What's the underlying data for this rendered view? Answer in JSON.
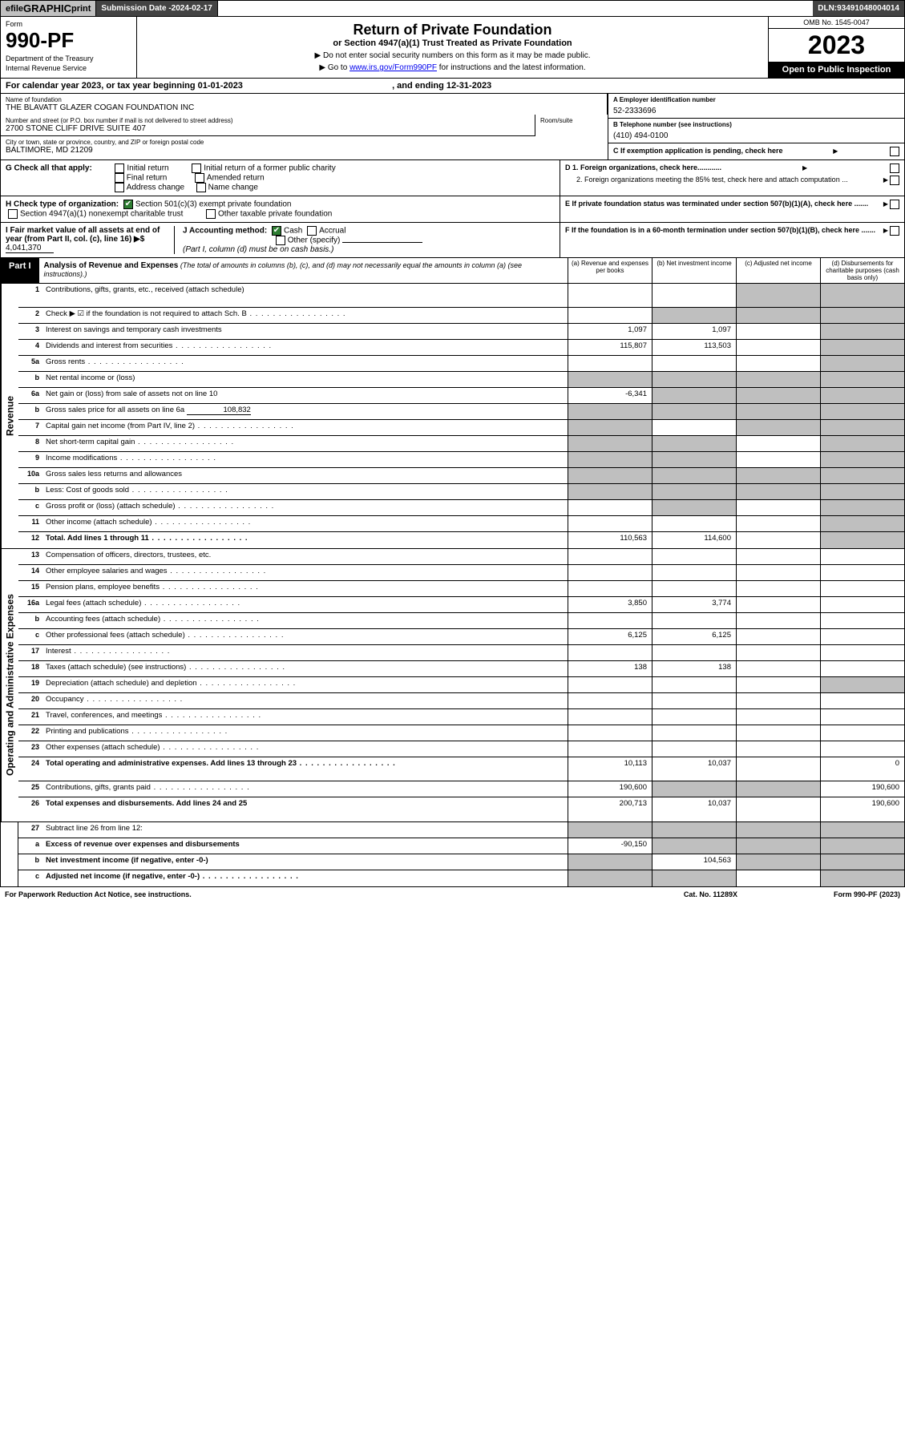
{
  "topbar": {
    "efile_prefix": "efile ",
    "efile_g": "GRAPHIC",
    "efile_suffix": " print",
    "subdate_label": "Submission Date - ",
    "subdate_val": "2024-02-17",
    "dln_label": "DLN: ",
    "dln_val": "93491048004014"
  },
  "header": {
    "form_word": "Form",
    "form_no": "990-PF",
    "dept1": "Department of the Treasury",
    "dept2": "Internal Revenue Service",
    "title": "Return of Private Foundation",
    "subtitle": "or Section 4947(a)(1) Trust Treated as Private Foundation",
    "inst1": "▶ Do not enter social security numbers on this form as it may be made public.",
    "inst2_pre": "▶ Go to ",
    "inst2_link": "www.irs.gov/Form990PF",
    "inst2_post": " for instructions and the latest information.",
    "omb": "OMB No. 1545-0047",
    "year": "2023",
    "inspect": "Open to Public Inspection"
  },
  "calyear": {
    "pre": "For calendar year 2023, or tax year beginning ",
    "begin": "01-01-2023",
    "mid": " , and ending ",
    "end": "12-31-2023"
  },
  "info": {
    "name_lbl": "Name of foundation",
    "name_val": "THE BLAVATT GLAZER COGAN FOUNDATION INC",
    "addr_lbl": "Number and street (or P.O. box number if mail is not delivered to street address)",
    "addr_val": "2700 STONE CLIFF DRIVE SUITE 407",
    "room_lbl": "Room/suite",
    "city_lbl": "City or town, state or province, country, and ZIP or foreign postal code",
    "city_val": "BALTIMORE, MD  21209",
    "ein_lbl": "A Employer identification number",
    "ein_val": "52-2333696",
    "tel_lbl": "B Telephone number (see instructions)",
    "tel_val": "(410) 494-0100",
    "c_lbl": "C If exemption application is pending, check here",
    "d1": "D 1. Foreign organizations, check here............",
    "d2": "2. Foreign organizations meeting the 85% test, check here and attach computation ...",
    "e_lbl": "E  If private foundation status was terminated under section 507(b)(1)(A), check here .......",
    "f_lbl": "F  If the foundation is in a 60-month termination under section 507(b)(1)(B), check here .......",
    "g_lbl": "G Check all that apply:",
    "g_opts": [
      "Initial return",
      "Final return",
      "Address change",
      "Initial return of a former public charity",
      "Amended return",
      "Name change"
    ],
    "h_lbl": "H Check type of organization:",
    "h1": "Section 501(c)(3) exempt private foundation",
    "h2": "Section 4947(a)(1) nonexempt charitable trust",
    "h3": "Other taxable private foundation",
    "i_lbl": "I Fair market value of all assets at end of year (from Part II, col. (c), line 16) ▶$ ",
    "i_val": "4,041,370",
    "j_lbl": "J Accounting method:",
    "j1": "Cash",
    "j2": "Accrual",
    "j3": "Other (specify)",
    "j_note": "(Part I, column (d) must be on cash basis.)"
  },
  "part1": {
    "label": "Part I",
    "title": "Analysis of Revenue and Expenses",
    "desc": " (The total of amounts in columns (b), (c), and (d) may not necessarily equal the amounts in column (a) (see instructions).)",
    "col_a": "(a)  Revenue and expenses per books",
    "col_b": "(b)  Net investment income",
    "col_c": "(c)  Adjusted net income",
    "col_d": "(d)  Disbursements for charitable purposes (cash basis only)"
  },
  "side_rev": "Revenue",
  "side_exp": "Operating and Administrative Expenses",
  "rows_rev": [
    {
      "n": "1",
      "d": "Contributions, gifts, grants, etc., received (attach schedule)",
      "a": "",
      "b": "",
      "c": "g",
      "dcol": "g",
      "tall": true
    },
    {
      "n": "2",
      "d": "Check ▶ ☑ if the foundation is not required to attach Sch. B",
      "a": "",
      "b": "g",
      "c": "g",
      "dcol": "g",
      "dot": true,
      "bold": false
    },
    {
      "n": "3",
      "d": "Interest on savings and temporary cash investments",
      "a": "1,097",
      "b": "1,097",
      "c": "",
      "dcol": "g"
    },
    {
      "n": "4",
      "d": "Dividends and interest from securities",
      "a": "115,807",
      "b": "113,503",
      "c": "",
      "dcol": "g",
      "dot": true
    },
    {
      "n": "5a",
      "d": "Gross rents",
      "a": "",
      "b": "",
      "c": "",
      "dcol": "g",
      "dot": true
    },
    {
      "n": "b",
      "d": "Net rental income or (loss)",
      "a": "g",
      "b": "g",
      "c": "g",
      "dcol": "g",
      "inset": true
    },
    {
      "n": "6a",
      "d": "Net gain or (loss) from sale of assets not on line 10",
      "a": "-6,341",
      "b": "g",
      "c": "g",
      "dcol": "g"
    },
    {
      "n": "b",
      "d": "Gross sales price for all assets on line 6a",
      "a": "g",
      "b": "g",
      "c": "g",
      "dcol": "g",
      "inline_val": "108,832"
    },
    {
      "n": "7",
      "d": "Capital gain net income (from Part IV, line 2)",
      "a": "g",
      "b": "",
      "c": "g",
      "dcol": "g",
      "dot": true
    },
    {
      "n": "8",
      "d": "Net short-term capital gain",
      "a": "g",
      "b": "g",
      "c": "",
      "dcol": "g",
      "dot": true
    },
    {
      "n": "9",
      "d": "Income modifications",
      "a": "g",
      "b": "g",
      "c": "",
      "dcol": "g",
      "dot": true
    },
    {
      "n": "10a",
      "d": "Gross sales less returns and allowances",
      "a": "g",
      "b": "g",
      "c": "g",
      "dcol": "g",
      "inset": true
    },
    {
      "n": "b",
      "d": "Less: Cost of goods sold",
      "a": "g",
      "b": "g",
      "c": "g",
      "dcol": "g",
      "dot": true,
      "inset": true
    },
    {
      "n": "c",
      "d": "Gross profit or (loss) (attach schedule)",
      "a": "",
      "b": "g",
      "c": "",
      "dcol": "g",
      "dot": true
    },
    {
      "n": "11",
      "d": "Other income (attach schedule)",
      "a": "",
      "b": "",
      "c": "",
      "dcol": "g",
      "dot": true
    },
    {
      "n": "12",
      "d": "Total. Add lines 1 through 11",
      "a": "110,563",
      "b": "114,600",
      "c": "",
      "dcol": "g",
      "dot": true,
      "bold": true
    }
  ],
  "rows_exp": [
    {
      "n": "13",
      "d": "Compensation of officers, directors, trustees, etc.",
      "a": "",
      "b": "",
      "c": "",
      "dcol": ""
    },
    {
      "n": "14",
      "d": "Other employee salaries and wages",
      "a": "",
      "b": "",
      "c": "",
      "dcol": "",
      "dot": true
    },
    {
      "n": "15",
      "d": "Pension plans, employee benefits",
      "a": "",
      "b": "",
      "c": "",
      "dcol": "",
      "dot": true
    },
    {
      "n": "16a",
      "d": "Legal fees (attach schedule)",
      "a": "3,850",
      "b": "3,774",
      "c": "",
      "dcol": "",
      "dot": true
    },
    {
      "n": "b",
      "d": "Accounting fees (attach schedule)",
      "a": "",
      "b": "",
      "c": "",
      "dcol": "",
      "dot": true
    },
    {
      "n": "c",
      "d": "Other professional fees (attach schedule)",
      "a": "6,125",
      "b": "6,125",
      "c": "",
      "dcol": "",
      "dot": true
    },
    {
      "n": "17",
      "d": "Interest",
      "a": "",
      "b": "",
      "c": "",
      "dcol": "",
      "dot": true
    },
    {
      "n": "18",
      "d": "Taxes (attach schedule) (see instructions)",
      "a": "138",
      "b": "138",
      "c": "",
      "dcol": "",
      "dot": true
    },
    {
      "n": "19",
      "d": "Depreciation (attach schedule) and depletion",
      "a": "",
      "b": "",
      "c": "",
      "dcol": "g",
      "dot": true
    },
    {
      "n": "20",
      "d": "Occupancy",
      "a": "",
      "b": "",
      "c": "",
      "dcol": "",
      "dot": true
    },
    {
      "n": "21",
      "d": "Travel, conferences, and meetings",
      "a": "",
      "b": "",
      "c": "",
      "dcol": "",
      "dot": true
    },
    {
      "n": "22",
      "d": "Printing and publications",
      "a": "",
      "b": "",
      "c": "",
      "dcol": "",
      "dot": true
    },
    {
      "n": "23",
      "d": "Other expenses (attach schedule)",
      "a": "",
      "b": "",
      "c": "",
      "dcol": "",
      "dot": true
    },
    {
      "n": "24",
      "d": "Total operating and administrative expenses. Add lines 13 through 23",
      "a": "10,113",
      "b": "10,037",
      "c": "",
      "dcol": "0",
      "dot": true,
      "bold": true,
      "tall": true
    },
    {
      "n": "25",
      "d": "Contributions, gifts, grants paid",
      "a": "190,600",
      "b": "g",
      "c": "g",
      "dcol": "190,600",
      "dot": true
    },
    {
      "n": "26",
      "d": "Total expenses and disbursements. Add lines 24 and 25",
      "a": "200,713",
      "b": "10,037",
      "c": "",
      "dcol": "190,600",
      "bold": true,
      "tall": true
    }
  ],
  "rows_sub": [
    {
      "n": "27",
      "d": "Subtract line 26 from line 12:",
      "a": "g",
      "b": "g",
      "c": "g",
      "dcol": "g"
    },
    {
      "n": "a",
      "d": "Excess of revenue over expenses and disbursements",
      "a": "-90,150",
      "b": "g",
      "c": "g",
      "dcol": "g",
      "bold": true
    },
    {
      "n": "b",
      "d": "Net investment income (if negative, enter -0-)",
      "a": "g",
      "b": "104,563",
      "c": "g",
      "dcol": "g",
      "bold": true
    },
    {
      "n": "c",
      "d": "Adjusted net income (if negative, enter -0-)",
      "a": "g",
      "b": "g",
      "c": "",
      "dcol": "g",
      "bold": true,
      "dot": true
    }
  ],
  "footer": {
    "left": "For Paperwork Reduction Act Notice, see instructions.",
    "mid": "Cat. No. 11289X",
    "right": "Form 990-PF (2023)"
  },
  "colors": {
    "grey": "#bfbfbf",
    "darkbar": "#434343",
    "link": "#0000ee",
    "check_green": "#2e7d32"
  }
}
